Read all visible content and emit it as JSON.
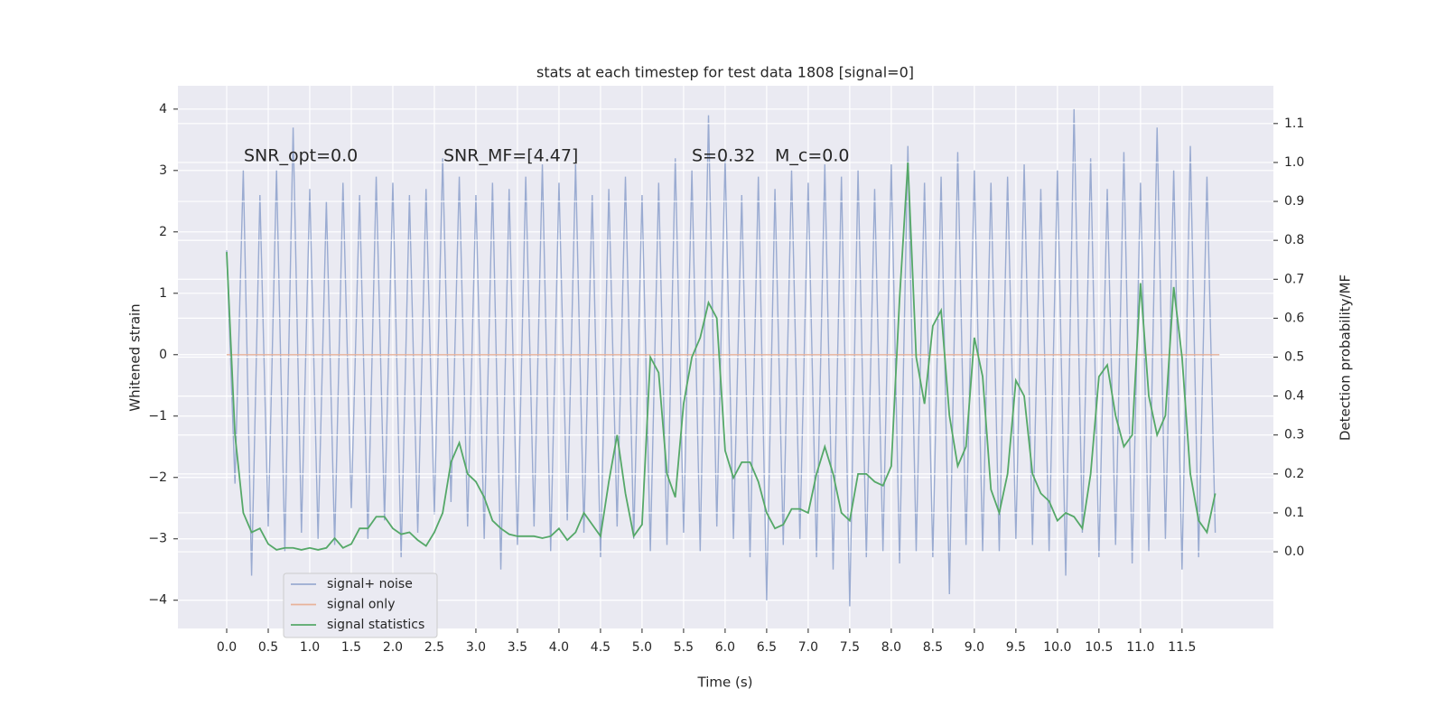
{
  "chart_data": {
    "type": "line",
    "title": "stats at each timestep for test data 1808 [signal=0]",
    "xlabel": "Time (s)",
    "ylabel": "Whitened strain",
    "y2label": "Detection probability/MF",
    "annotations": [
      "SNR_opt=0.0",
      "SNR_MF=[4.47]",
      "S=0.32",
      "M_c=0.0"
    ],
    "xlim": [
      -0.587,
      12.6
    ],
    "ylim": [
      -4.46,
      4.38
    ],
    "y2lim": [
      -0.197,
      1.197
    ],
    "xticks": [
      {
        "value": 0,
        "label": "0.0"
      },
      {
        "value": 0.5,
        "label": "0.5"
      },
      {
        "value": 1,
        "label": "1.0"
      },
      {
        "value": 1.5,
        "label": "1.5"
      },
      {
        "value": 2,
        "label": "2.0"
      },
      {
        "value": 2.5,
        "label": "2.5"
      },
      {
        "value": 3,
        "label": "3.0"
      },
      {
        "value": 3.5,
        "label": "3.5"
      },
      {
        "value": 4,
        "label": "4.0"
      },
      {
        "value": 4.5,
        "label": "4.5"
      },
      {
        "value": 5,
        "label": "5.0"
      },
      {
        "value": 5.5,
        "label": "5.5"
      },
      {
        "value": 6,
        "label": "6.0"
      },
      {
        "value": 6.5,
        "label": "6.5"
      },
      {
        "value": 7,
        "label": "7.0"
      },
      {
        "value": 7.5,
        "label": "7.5"
      },
      {
        "value": 8,
        "label": "8.0"
      },
      {
        "value": 8.5,
        "label": "8.5"
      },
      {
        "value": 9,
        "label": "9.0"
      },
      {
        "value": 9.5,
        "label": "9.5"
      },
      {
        "value": 10,
        "label": "10.0"
      },
      {
        "value": 10.5,
        "label": "10.5"
      },
      {
        "value": 11,
        "label": "11.0"
      },
      {
        "value": 11.5,
        "label": "11.5"
      }
    ],
    "yticks": [
      {
        "value": -4,
        "label": "−4"
      },
      {
        "value": -3,
        "label": "−3"
      },
      {
        "value": -2,
        "label": "−2"
      },
      {
        "value": -1,
        "label": "−1"
      },
      0,
      1,
      2,
      3,
      4
    ],
    "y2ticks": [
      {
        "value": 0,
        "label": "0.0"
      },
      {
        "value": 0.1,
        "label": "0.1"
      },
      {
        "value": 0.2,
        "label": "0.2"
      },
      {
        "value": 0.3,
        "label": "0.3"
      },
      {
        "value": 0.4,
        "label": "0.4"
      },
      {
        "value": 0.5,
        "label": "0.5"
      },
      {
        "value": 0.6,
        "label": "0.6"
      },
      {
        "value": 0.7,
        "label": "0.7"
      },
      {
        "value": 0.8,
        "label": "0.8"
      },
      {
        "value": 0.9,
        "label": "0.9"
      },
      {
        "value": 1,
        "label": "1.0"
      },
      {
        "value": 1.1,
        "label": "1.1"
      }
    ],
    "grid": true,
    "legend": "lower left",
    "series": [
      {
        "name": "signal+ noise",
        "color": "#9aabd1",
        "x": [
          0,
          0.1,
          0.2,
          0.3,
          0.4,
          0.5,
          0.6,
          0.7,
          0.8,
          0.9,
          1,
          1.1,
          1.2,
          1.3,
          1.4,
          1.5,
          1.6,
          1.7,
          1.8,
          1.9,
          2,
          2.1,
          2.2,
          2.3,
          2.4,
          2.5,
          2.6,
          2.7,
          2.8,
          2.9,
          3,
          3.1,
          3.2,
          3.3,
          3.4,
          3.5,
          3.6,
          3.7,
          3.8,
          3.9,
          4,
          4.1,
          4.2,
          4.3,
          4.4,
          4.5,
          4.6,
          4.7,
          4.8,
          4.9,
          5,
          5.1,
          5.2,
          5.3,
          5.4,
          5.5,
          5.6,
          5.7,
          5.8,
          5.9,
          6,
          6.1,
          6.2,
          6.3,
          6.4,
          6.5,
          6.6,
          6.7,
          6.8,
          6.9,
          7,
          7.1,
          7.2,
          7.3,
          7.4,
          7.5,
          7.6,
          7.7,
          7.8,
          7.9,
          8,
          8.1,
          8.2,
          8.3,
          8.4,
          8.5,
          8.6,
          8.7,
          8.8,
          8.9,
          9,
          9.1,
          9.2,
          9.3,
          9.4,
          9.5,
          9.6,
          9.7,
          9.8,
          9.9,
          10,
          10.1,
          10.2,
          10.3,
          10.4,
          10.5,
          10.6,
          10.7,
          10.8,
          10.9,
          11,
          11.1,
          11.2,
          11.3,
          11.4,
          11.5,
          11.6,
          11.7,
          11.8,
          11.9
        ],
        "values": [
          1.7,
          -2.1,
          3.0,
          -3.6,
          2.6,
          -2.8,
          3.0,
          -3.2,
          3.7,
          -2.9,
          2.7,
          -3.0,
          2.5,
          -3.1,
          2.8,
          -2.5,
          2.6,
          -3.0,
          2.9,
          -2.7,
          2.8,
          -3.3,
          2.6,
          -2.9,
          2.7,
          -2.6,
          3.2,
          -2.4,
          2.9,
          -2.8,
          2.6,
          -3.0,
          2.8,
          -3.5,
          2.7,
          -3.1,
          2.9,
          -2.8,
          3.1,
          -3.2,
          2.8,
          -2.7,
          3.1,
          -2.9,
          2.6,
          -3.3,
          2.7,
          -2.8,
          2.9,
          -3.0,
          2.6,
          -3.2,
          2.8,
          -3.1,
          3.2,
          -2.9,
          3.0,
          -3.2,
          3.9,
          -2.8,
          3.2,
          -3.0,
          2.6,
          -3.3,
          2.9,
          -4.0,
          2.7,
          -3.1,
          3.0,
          -3.0,
          2.8,
          -3.3,
          3.1,
          -3.5,
          2.9,
          -4.1,
          3.0,
          -3.3,
          2.7,
          -3.2,
          3.1,
          -3.4,
          3.4,
          -3.2,
          2.8,
          -3.3,
          2.9,
          -3.9,
          3.3,
          -3.1,
          3.0,
          -3.2,
          2.8,
          -3.2,
          2.9,
          -3.0,
          3.1,
          -3.1,
          2.7,
          -3.2,
          3.0,
          -3.6,
          4.0,
          -2.9,
          3.2,
          -3.3,
          2.7,
          -3.1,
          3.3,
          -3.4,
          2.8,
          -3.2,
          3.7,
          -3.0,
          3.0,
          -3.5,
          3.4,
          -3.3,
          2.9,
          -2.9
        ]
      },
      {
        "name": "signal only",
        "color": "#e8b29a",
        "x": [
          0,
          11.95
        ],
        "values": [
          0,
          0
        ]
      },
      {
        "name": "signal statistics",
        "color": "#55a868",
        "axis": "y2",
        "x": [
          0,
          0.1,
          0.2,
          0.3,
          0.4,
          0.5,
          0.6,
          0.7,
          0.8,
          0.9,
          1,
          1.1,
          1.2,
          1.3,
          1.4,
          1.5,
          1.6,
          1.7,
          1.8,
          1.9,
          2,
          2.1,
          2.2,
          2.3,
          2.4,
          2.5,
          2.6,
          2.7,
          2.8,
          2.9,
          3,
          3.1,
          3.2,
          3.3,
          3.4,
          3.5,
          3.6,
          3.7,
          3.8,
          3.9,
          4,
          4.1,
          4.2,
          4.3,
          4.4,
          4.5,
          4.6,
          4.7,
          4.8,
          4.9,
          5,
          5.1,
          5.2,
          5.3,
          5.4,
          5.5,
          5.6,
          5.7,
          5.8,
          5.9,
          6,
          6.1,
          6.2,
          6.3,
          6.4,
          6.5,
          6.6,
          6.7,
          6.8,
          6.9,
          7,
          7.1,
          7.2,
          7.3,
          7.4,
          7.5,
          7.6,
          7.7,
          7.8,
          7.9,
          8,
          8.1,
          8.2,
          8.3,
          8.4,
          8.5,
          8.6,
          8.7,
          8.8,
          8.9,
          9,
          9.1,
          9.2,
          9.3,
          9.4,
          9.5,
          9.6,
          9.7,
          9.8,
          9.9,
          10,
          10.1,
          10.2,
          10.3,
          10.4,
          10.5,
          10.6,
          10.7,
          10.8,
          10.9,
          11,
          11.1,
          11.2,
          11.3,
          11.4,
          11.5,
          11.6,
          11.7,
          11.8,
          11.9
        ],
        "values": [
          0.77,
          0.3,
          0.1,
          0.05,
          0.06,
          0.02,
          0.005,
          0.01,
          0.01,
          0.005,
          0.01,
          0.005,
          0.01,
          0.035,
          0.01,
          0.02,
          0.06,
          0.06,
          0.09,
          0.09,
          0.06,
          0.045,
          0.05,
          0.03,
          0.015,
          0.05,
          0.1,
          0.23,
          0.28,
          0.2,
          0.18,
          0.14,
          0.08,
          0.06,
          0.045,
          0.04,
          0.04,
          0.04,
          0.035,
          0.04,
          0.06,
          0.03,
          0.05,
          0.1,
          0.07,
          0.04,
          0.18,
          0.3,
          0.15,
          0.04,
          0.07,
          0.5,
          0.46,
          0.2,
          0.14,
          0.38,
          0.5,
          0.55,
          0.64,
          0.6,
          0.26,
          0.19,
          0.23,
          0.23,
          0.18,
          0.1,
          0.06,
          0.07,
          0.11,
          0.11,
          0.1,
          0.2,
          0.27,
          0.2,
          0.1,
          0.08,
          0.2,
          0.2,
          0.18,
          0.17,
          0.22,
          0.65,
          1.0,
          0.5,
          0.38,
          0.58,
          0.62,
          0.35,
          0.22,
          0.27,
          0.55,
          0.45,
          0.16,
          0.1,
          0.2,
          0.44,
          0.4,
          0.2,
          0.15,
          0.13,
          0.08,
          0.1,
          0.09,
          0.06,
          0.2,
          0.45,
          0.48,
          0.35,
          0.27,
          0.3,
          0.69,
          0.4,
          0.3,
          0.35,
          0.68,
          0.5,
          0.2,
          0.08,
          0.05,
          0.15
        ]
      }
    ]
  }
}
